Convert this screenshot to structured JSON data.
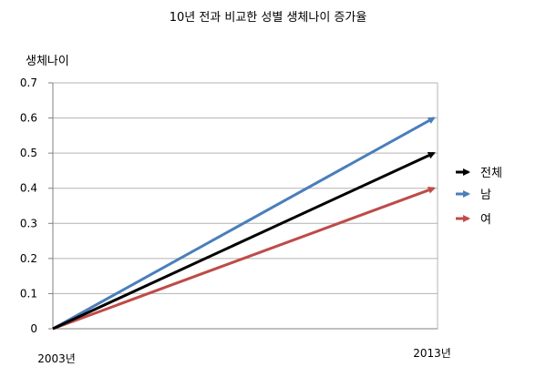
{
  "chart_data": {
    "type": "line",
    "title": "10년 전과 비교한 성별 생체나이 증가율",
    "ylabel": "생체나이",
    "xlabel": "",
    "categories": [
      "2003년",
      "2013년"
    ],
    "ylim": [
      0,
      0.7
    ],
    "yticks": [
      "0",
      "0.1",
      "0.2",
      "0.3",
      "0.4",
      "0.5",
      "0.6",
      "0.7"
    ],
    "grid": true,
    "legend_position": "right",
    "series": [
      {
        "name": "전체",
        "values": [
          0,
          0.5
        ],
        "color": "#000000"
      },
      {
        "name": "남",
        "values": [
          0,
          0.6
        ],
        "color": "#4a7ebb"
      },
      {
        "name": "여",
        "values": [
          0,
          0.4
        ],
        "color": "#be4b48"
      }
    ]
  }
}
